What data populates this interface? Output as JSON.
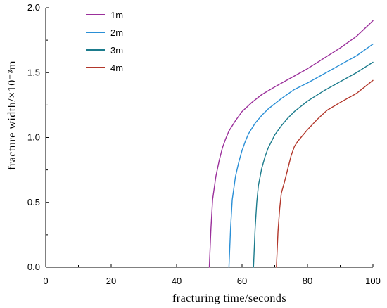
{
  "chart_data": {
    "type": "line",
    "xlabel": "fracturing time/seconds",
    "ylabel": "fracture width/×10⁻³m",
    "xlim": [
      0,
      100
    ],
    "ylim": [
      0,
      2.0
    ],
    "xticks": [
      0,
      20,
      40,
      60,
      80,
      100
    ],
    "yticks": [
      0.0,
      0.5,
      1.0,
      1.5,
      2.0
    ],
    "xtick_labels": [
      "0",
      "20",
      "40",
      "60",
      "80",
      "100"
    ],
    "ytick_labels": [
      "0.0",
      "0.5",
      "1.0",
      "1.5",
      "2.0"
    ],
    "grid": false,
    "legend_position": "top-left",
    "series": [
      {
        "name": "1m",
        "color": "#9b2f9b",
        "x": [
          50.0,
          50.5,
          51,
          52,
          53,
          54,
          55,
          56,
          58,
          60,
          63,
          66,
          70,
          75,
          80,
          85,
          90,
          95,
          100
        ],
        "y": [
          0.0,
          0.3,
          0.52,
          0.7,
          0.82,
          0.92,
          0.99,
          1.05,
          1.13,
          1.2,
          1.27,
          1.33,
          1.39,
          1.46,
          1.53,
          1.61,
          1.69,
          1.78,
          1.9
        ]
      },
      {
        "name": "2m",
        "color": "#2a8fd6",
        "x": [
          56.0,
          56.5,
          57,
          58,
          59,
          60,
          61,
          62,
          64,
          66,
          68,
          72,
          76,
          80,
          85,
          90,
          95,
          100
        ],
        "y": [
          0.0,
          0.3,
          0.52,
          0.7,
          0.81,
          0.9,
          0.97,
          1.03,
          1.11,
          1.17,
          1.22,
          1.3,
          1.37,
          1.42,
          1.49,
          1.56,
          1.63,
          1.72
        ]
      },
      {
        "name": "3m",
        "color": "#1b7b8c",
        "x": [
          63.5,
          64,
          64.5,
          65,
          66,
          67,
          68,
          70,
          72,
          74,
          76,
          80,
          85,
          90,
          95,
          100
        ],
        "y": [
          0.0,
          0.3,
          0.5,
          0.63,
          0.76,
          0.85,
          0.92,
          1.02,
          1.09,
          1.15,
          1.2,
          1.28,
          1.36,
          1.43,
          1.5,
          1.58
        ]
      },
      {
        "name": "4m",
        "color": "#b2372b",
        "x": [
          70.5,
          71,
          71.5,
          72,
          73,
          74,
          75,
          76,
          77,
          78,
          80,
          83,
          86,
          90,
          95,
          100
        ],
        "y": [
          0.0,
          0.28,
          0.45,
          0.57,
          0.66,
          0.76,
          0.86,
          0.93,
          0.97,
          1.0,
          1.06,
          1.14,
          1.21,
          1.27,
          1.34,
          1.44
        ]
      }
    ]
  }
}
